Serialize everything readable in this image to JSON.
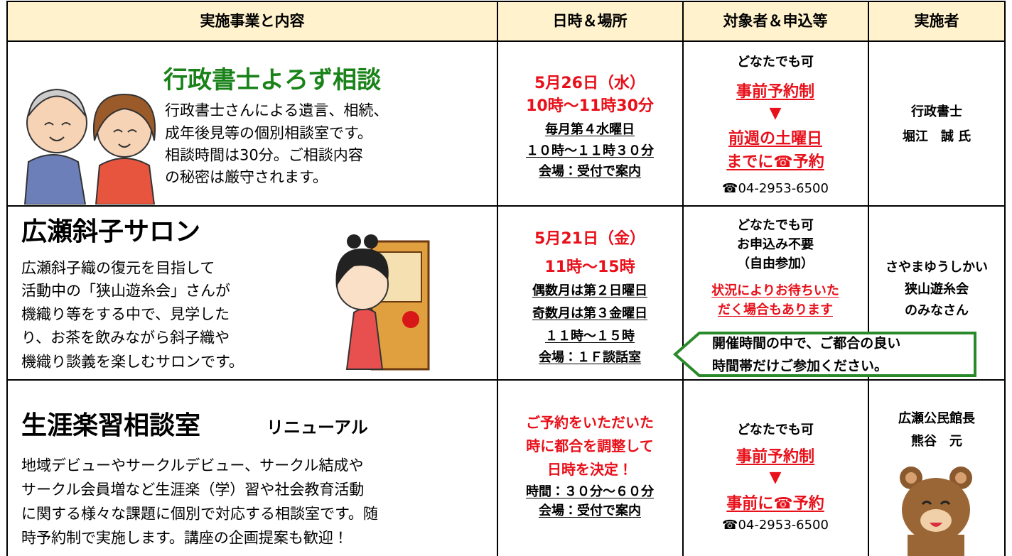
{
  "table": {
    "header": [
      "実施事業と内容",
      "日時＆場所",
      "対象者＆申込等",
      "実施者"
    ],
    "rows": [
      {
        "title": "行政書士よろず相談",
        "description": [
          "行政書士さんによる遺言、相続、",
          "成年後見等の個別相談室です。",
          "相談時間は30分。ご相談内容",
          "の秘密は厳守されます。"
        ],
        "schedule": {
          "highlight": [
            "5月26日（水）",
            "10時～11時30分"
          ],
          "details": [
            "毎月第４水曜日",
            "１０時～１１時３０分",
            "会場：受付で案内"
          ]
        },
        "target": {
          "note": [
            "どなたでも可"
          ],
          "method": "事前予約制",
          "arrow": "▼",
          "deadline": [
            "前週の土曜日",
            "までに☎予約"
          ],
          "phone": "☎04-2953-6500"
        },
        "presenter": [
          "行政書士",
          "堀江　誠 氏"
        ]
      },
      {
        "title": "広瀬斜子サロン",
        "description": [
          "広瀬斜子織の復元を目指して",
          "活動中の「狭山遊糸会」さんが",
          "機織り等をする中で、見学した",
          "り、お茶を飲みながら斜子織や",
          "機織り談義を楽しむサロンです。"
        ],
        "schedule": {
          "highlight": [
            "5月21日（金）",
            "11時～15時"
          ],
          "details": [
            "偶数月は第２日曜日",
            "奇数月は第３金曜日",
            "１１時～１５時",
            "会場：１Ｆ談話室"
          ]
        },
        "target": {
          "note": [
            "どなたでも可",
            "お申込み不要",
            "（自由参加）"
          ],
          "caution": [
            "状況によりお待ちいた",
            "だく場合もあります"
          ]
        },
        "presenter": [
          "さやまゆうしかい",
          "狭山遊糸会",
          "のみなさん"
        ],
        "callout": [
          "開催時間の中で、ご都合の良い",
          "時間帯だけご参加ください。"
        ]
      },
      {
        "title": "生涯楽習相談室",
        "tag": "リニューアル",
        "description": [
          "地域デビューやサークルデビュー、サークル結成や",
          "サークル会員増など生涯楽（学）習や社会教育活動",
          "に関する様々な課題に個別で対応する相談室です。随",
          "時予約制で実施します。講座の企画提案も歓迎！"
        ],
        "schedule": {
          "highlight": [
            "ご予約をいただいた",
            "時に都合を調整して",
            "日時を決定！"
          ],
          "details": [
            "時間：３０分～６０分",
            "会場：受付で案内"
          ]
        },
        "target": {
          "note": [
            "どなたでも可"
          ],
          "method": "事前予約制",
          "arrow": "▼",
          "deadline": [
            "事前に☎予約"
          ],
          "phone": "☎04-2953-6500"
        },
        "presenter": [
          "広瀬公民館長",
          "熊谷　元"
        ]
      }
    ]
  }
}
